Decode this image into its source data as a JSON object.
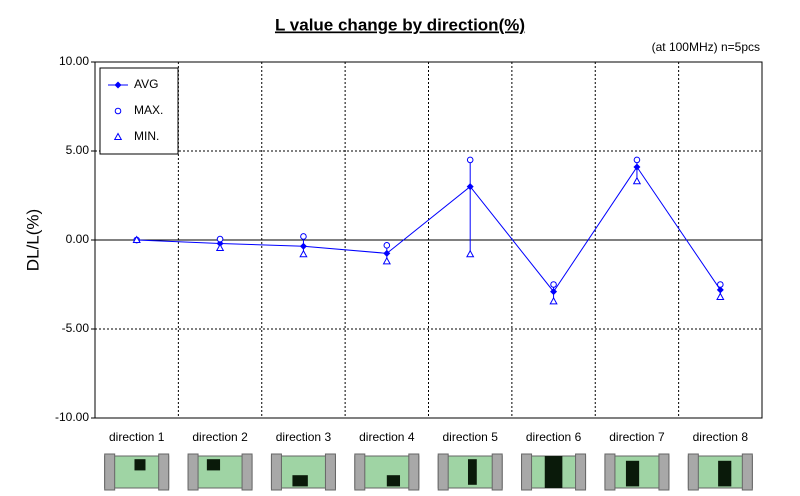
{
  "chart_data": {
    "type": "line",
    "title": "L value change by direction(%)",
    "annotation": "(at 100MHz)  n=5pcs",
    "y_label": "DL/L(%)",
    "categories": [
      "direction 1",
      "direction 2",
      "direction 3",
      "direction 4",
      "direction 5",
      "direction 6",
      "direction 7",
      "direction 8"
    ],
    "series": [
      {
        "name": "AVG",
        "color": "#0000ff",
        "marker": "diamond",
        "line": true,
        "values": [
          0,
          -0.2,
          -0.35,
          -0.75,
          3.0,
          -2.9,
          4.1,
          -2.8
        ]
      },
      {
        "name": "MAX.",
        "color": "#0000ff",
        "marker": "circle",
        "line": false,
        "values": [
          0,
          0.05,
          0.2,
          -0.3,
          4.5,
          -2.5,
          4.5,
          -2.5
        ]
      },
      {
        "name": "MIN.",
        "color": "#0000ff",
        "marker": "triangle",
        "line": false,
        "values": [
          0,
          -0.45,
          -0.8,
          -1.2,
          -0.8,
          -3.45,
          3.3,
          -3.2
        ]
      }
    ],
    "ylim": [
      -10,
      10
    ],
    "yticks": [
      {
        "value": -10,
        "label": "-10.00"
      },
      {
        "value": -5,
        "label": "-5.00"
      },
      {
        "value": 0,
        "label": "0.00"
      },
      {
        "value": 5,
        "label": "5.00"
      },
      {
        "value": 10,
        "label": "10.00"
      }
    ],
    "grid": true,
    "legend": "upper left"
  }
}
